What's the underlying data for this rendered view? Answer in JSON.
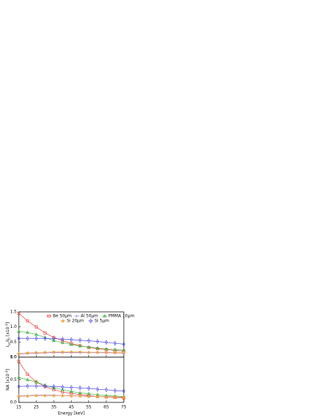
{
  "chart_data": [
    {
      "type": "line",
      "ylabel": [
        "I",
        "sc",
        "/I",
        "0",
        " [x10",
        "-3",
        "]"
      ],
      "x": [
        15,
        20,
        25,
        30,
        35,
        40,
        45,
        50,
        55,
        60,
        65,
        70,
        75
      ],
      "xlim": [
        15,
        75
      ],
      "ylim": [
        0,
        1.5
      ],
      "yticks": [
        {
          "value": 0,
          "label": "0.0"
        },
        0.5,
        {
          "value": 1,
          "label": "1.0"
        },
        1.5
      ],
      "legend": "upper right",
      "series": [
        {
          "name": "Be 50µm",
          "color": "#e8302a",
          "marker": "square",
          "values": [
            1.45,
            1.2,
            1.0,
            0.8,
            0.65,
            0.55,
            0.45,
            0.38,
            0.32,
            0.28,
            0.25,
            0.22,
            0.2
          ]
        },
        {
          "name": "Al 50µm",
          "color": "#9a6bd8",
          "marker": "plus",
          "values": [
            0.1,
            0.12,
            0.13,
            0.14,
            0.15,
            0.15,
            0.15,
            0.15,
            0.15,
            0.15,
            0.14,
            0.14,
            0.13
          ]
        },
        {
          "name": "PMMA 10µm",
          "color": "#3db03d",
          "marker": "triangle",
          "values": [
            0.85,
            0.82,
            0.75,
            0.65,
            0.55,
            0.48,
            0.42,
            0.37,
            0.33,
            0.3,
            0.27,
            0.25,
            0.23
          ]
        },
        {
          "name": "Si 20µm",
          "color": "#f0a040",
          "marker": "star",
          "values": [
            0.12,
            0.14,
            0.15,
            0.16,
            0.17,
            0.17,
            0.17,
            0.17,
            0.16,
            0.16,
            0.16,
            0.15,
            0.15
          ]
        },
        {
          "name": "Si 5µm",
          "color": "#3a3ae8",
          "marker": "diamond",
          "values": [
            0.62,
            0.62,
            0.62,
            0.62,
            0.61,
            0.6,
            0.58,
            0.56,
            0.54,
            0.52,
            0.49,
            0.46,
            0.43
          ]
        }
      ]
    },
    {
      "type": "line",
      "ylabel": [
        "NA [x10",
        "-3",
        "]"
      ],
      "xlabel": "Energy [keV]",
      "x": [
        15,
        20,
        25,
        30,
        35,
        40,
        45,
        50,
        55,
        60,
        65,
        70,
        75
      ],
      "xlim": [
        15,
        75
      ],
      "ylim": [
        0,
        1
      ],
      "xticks": [
        15,
        25,
        35,
        45,
        55,
        65,
        75
      ],
      "yticks": [
        {
          "value": 0,
          "label": "0.0"
        },
        0.5,
        {
          "value": 1,
          "label": "1.0"
        }
      ],
      "series": [
        {
          "color": "#e8302a",
          "marker": "square",
          "values": [
            0.9,
            0.62,
            0.45,
            0.35,
            0.28,
            0.23,
            0.2,
            0.17,
            0.15,
            0.13,
            0.12,
            0.11,
            0.1
          ]
        },
        {
          "color": "#9a6bd8",
          "marker": "plus",
          "values": [
            0.15,
            0.15,
            0.16,
            0.16,
            0.16,
            0.15,
            0.15,
            0.14,
            0.14,
            0.13,
            0.13,
            0.12,
            0.12
          ]
        },
        {
          "color": "#3db03d",
          "marker": "triangle",
          "values": [
            0.55,
            0.5,
            0.45,
            0.38,
            0.32,
            0.28,
            0.24,
            0.21,
            0.19,
            0.17,
            0.15,
            0.14,
            0.13
          ]
        },
        {
          "color": "#f0a040",
          "marker": "star",
          "values": [
            0.13,
            0.14,
            0.15,
            0.15,
            0.15,
            0.15,
            0.14,
            0.14,
            0.13,
            0.13,
            0.12,
            0.12,
            0.11
          ]
        },
        {
          "color": "#3a3ae8",
          "marker": "diamond",
          "values": [
            0.35,
            0.36,
            0.36,
            0.36,
            0.35,
            0.34,
            0.33,
            0.32,
            0.31,
            0.29,
            0.28,
            0.26,
            0.25
          ]
        }
      ]
    }
  ]
}
